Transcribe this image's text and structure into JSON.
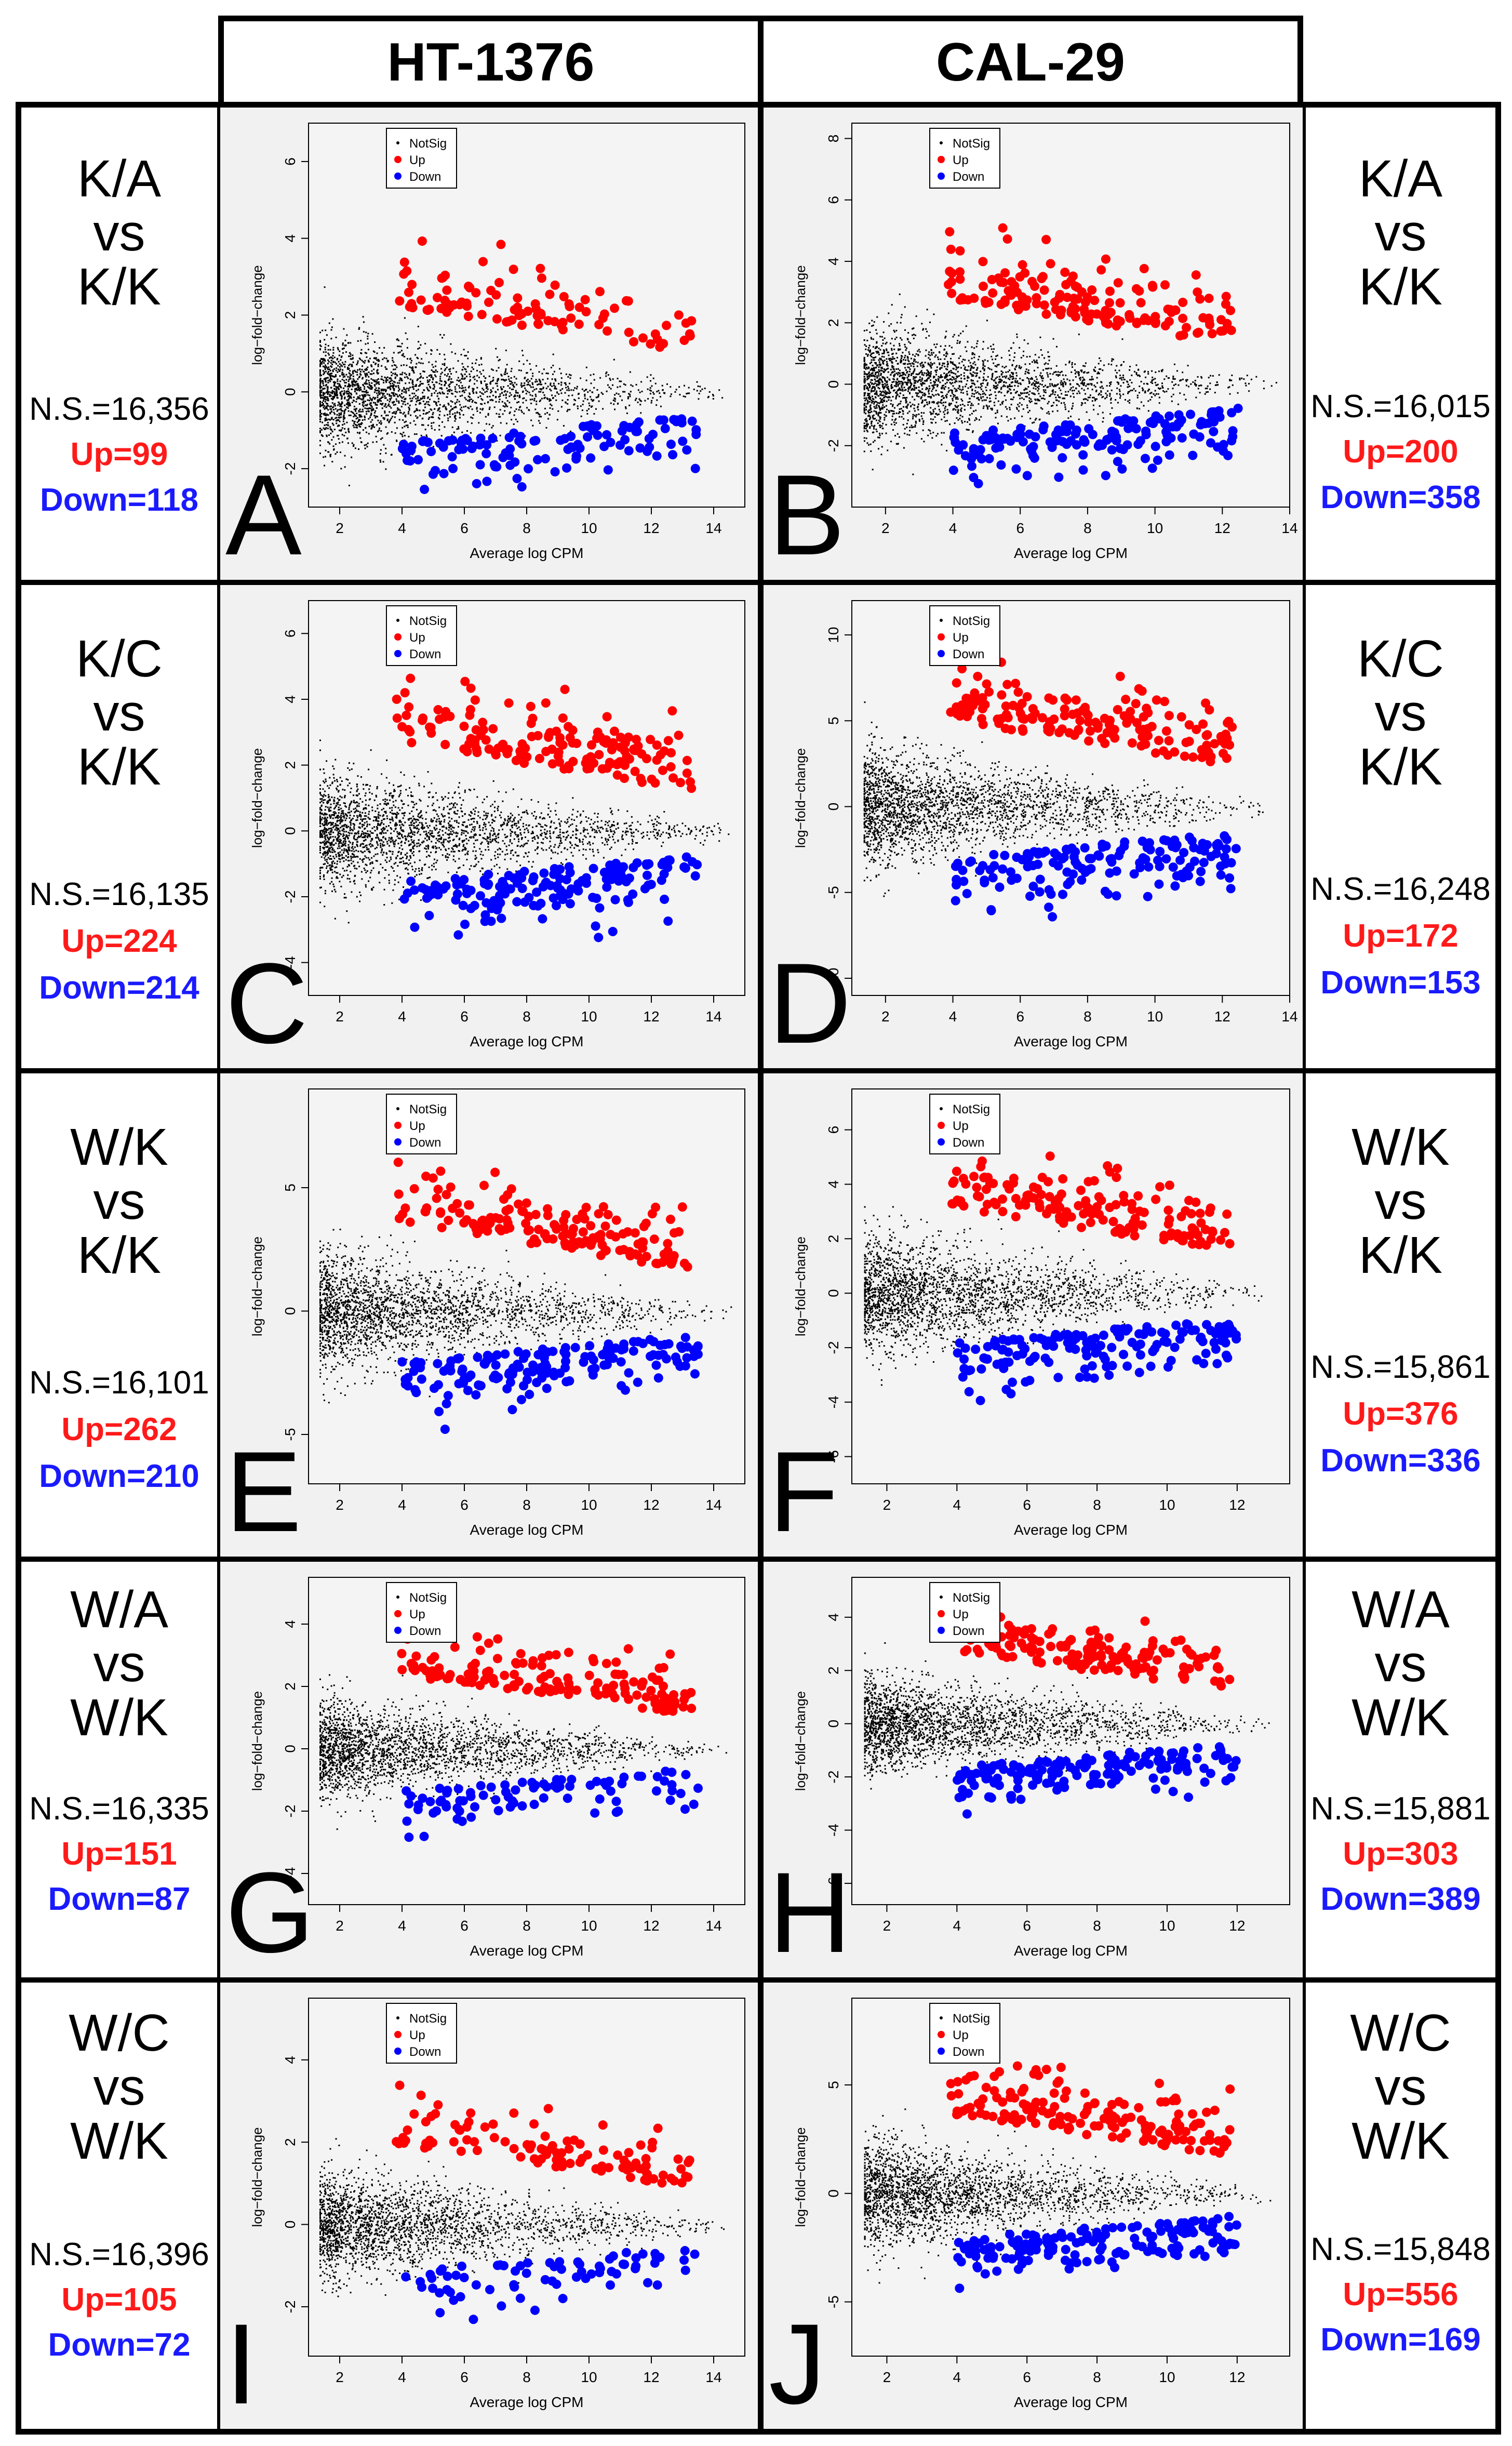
{
  "headers": {
    "left": "HT-1376",
    "right": "CAL-29"
  },
  "axis_labels": {
    "x": "Average log CPM",
    "y": "log−fold−change"
  },
  "legend": {
    "notsig": "NotSig",
    "up": "Up",
    "down": "Down"
  },
  "colors": {
    "notsig": "#000000",
    "up": "#ff0000",
    "down": "#0000ff",
    "up_text": "#ff1a1a",
    "down_text": "#1a1aff"
  },
  "rows": [
    {
      "comparison": [
        "K/A",
        "vs",
        "K/K"
      ],
      "left": {
        "ns": "N.S.=16,356",
        "up": "Up=99",
        "down": "Down=118"
      },
      "right": {
        "ns": "N.S.=16,015",
        "up": "Up=200",
        "down": "Down=358"
      }
    },
    {
      "comparison": [
        "K/C",
        "vs",
        "K/K"
      ],
      "left": {
        "ns": "N.S.=16,135",
        "up": "Up=224",
        "down": "Down=214"
      },
      "right": {
        "ns": "N.S.=16,248",
        "up": "Up=172",
        "down": "Down=153"
      }
    },
    {
      "comparison": [
        "W/K",
        "vs",
        "K/K"
      ],
      "left": {
        "ns": "N.S.=16,101",
        "up": "Up=262",
        "down": "Down=210"
      },
      "right": {
        "ns": "N.S.=15,861",
        "up": "Up=376",
        "down": "Down=336"
      }
    },
    {
      "comparison": [
        "W/A",
        "vs",
        "W/K"
      ],
      "left": {
        "ns": "N.S.=16,335",
        "up": "Up=151",
        "down": "Down=87"
      },
      "right": {
        "ns": "N.S.=15,881",
        "up": "Up=303",
        "down": "Down=389"
      }
    },
    {
      "comparison": [
        "W/C",
        "vs",
        "W/K"
      ],
      "left": {
        "ns": "N.S.=16,396",
        "up": "Up=105",
        "down": "Down=72"
      },
      "right": {
        "ns": "N.S.=15,848",
        "up": "Up=556",
        "down": "Down=169"
      }
    }
  ],
  "chart_data": [
    {
      "panel": "A",
      "type": "scatter",
      "cell_line": "HT-1376",
      "comparison": "K/A vs K/K",
      "xlabel": "Average log CPM",
      "ylabel": "log-fold-change",
      "xlim": [
        1,
        15
      ],
      "ylim": [
        -3,
        7
      ],
      "xticks": [
        2,
        4,
        6,
        8,
        10,
        12,
        14
      ],
      "yticks": [
        -2,
        0,
        2,
        4,
        6
      ],
      "legend": [
        "NotSig",
        "Up",
        "Down"
      ],
      "series": [
        {
          "name": "NotSig",
          "count": 16356
        },
        {
          "name": "Up",
          "count": 99
        },
        {
          "name": "Down",
          "count": 118
        }
      ]
    },
    {
      "panel": "B",
      "type": "scatter",
      "cell_line": "CAL-29",
      "comparison": "K/A vs K/K",
      "xlabel": "Average log CPM",
      "ylabel": "log-fold-change",
      "xlim": [
        1,
        14
      ],
      "ylim": [
        -4,
        8.5
      ],
      "xticks": [
        2,
        4,
        6,
        8,
        10,
        12,
        14
      ],
      "yticks": [
        -2,
        0,
        2,
        4,
        6,
        8
      ],
      "legend": [
        "NotSig",
        "Up",
        "Down"
      ],
      "series": [
        {
          "name": "NotSig",
          "count": 16015
        },
        {
          "name": "Up",
          "count": 200
        },
        {
          "name": "Down",
          "count": 358
        }
      ]
    },
    {
      "panel": "C",
      "type": "scatter",
      "cell_line": "HT-1376",
      "comparison": "K/C vs K/K",
      "xlabel": "Average log CPM",
      "ylabel": "log-fold-change",
      "xlim": [
        1,
        15
      ],
      "ylim": [
        -5,
        7
      ],
      "xticks": [
        2,
        4,
        6,
        8,
        10,
        12,
        14
      ],
      "yticks": [
        -4,
        -2,
        0,
        2,
        4,
        6
      ],
      "legend": [
        "NotSig",
        "Up",
        "Down"
      ],
      "series": [
        {
          "name": "NotSig",
          "count": 16135
        },
        {
          "name": "Up",
          "count": 224
        },
        {
          "name": "Down",
          "count": 214
        }
      ]
    },
    {
      "panel": "D",
      "type": "scatter",
      "cell_line": "CAL-29",
      "comparison": "K/C vs K/K",
      "xlabel": "Average log CPM",
      "ylabel": "log-fold-change",
      "xlim": [
        1,
        14
      ],
      "ylim": [
        -11,
        12
      ],
      "xticks": [
        2,
        4,
        6,
        8,
        10,
        12,
        14
      ],
      "yticks": [
        -10,
        -5,
        0,
        5,
        10
      ],
      "legend": [
        "NotSig",
        "Up",
        "Down"
      ],
      "series": [
        {
          "name": "NotSig",
          "count": 16248
        },
        {
          "name": "Up",
          "count": 172
        },
        {
          "name": "Down",
          "count": 153
        }
      ]
    },
    {
      "panel": "E",
      "type": "scatter",
      "cell_line": "HT-1376",
      "comparison": "W/K vs K/K",
      "xlabel": "Average log CPM",
      "ylabel": "log-fold-change",
      "xlim": [
        1,
        15
      ],
      "ylim": [
        -7,
        9
      ],
      "xticks": [
        2,
        4,
        6,
        8,
        10,
        12,
        14
      ],
      "yticks": [
        -5,
        0,
        5
      ],
      "legend": [
        "NotSig",
        "Up",
        "Down"
      ],
      "series": [
        {
          "name": "NotSig",
          "count": 16101
        },
        {
          "name": "Up",
          "count": 262
        },
        {
          "name": "Down",
          "count": 210
        }
      ]
    },
    {
      "panel": "F",
      "type": "scatter",
      "cell_line": "CAL-29",
      "comparison": "W/K vs K/K",
      "xlabel": "Average log CPM",
      "ylabel": "log-fold-change",
      "xlim": [
        1,
        13.5
      ],
      "ylim": [
        -7,
        7.5
      ],
      "xticks": [
        2,
        4,
        6,
        8,
        10,
        12
      ],
      "yticks": [
        -6,
        -4,
        -2,
        0,
        2,
        4,
        6
      ],
      "legend": [
        "NotSig",
        "Up",
        "Down"
      ],
      "series": [
        {
          "name": "NotSig",
          "count": 15861
        },
        {
          "name": "Up",
          "count": 376
        },
        {
          "name": "Down",
          "count": 336
        }
      ]
    },
    {
      "panel": "G",
      "type": "scatter",
      "cell_line": "HT-1376",
      "comparison": "W/A vs W/K",
      "xlabel": "Average log CPM",
      "ylabel": "log-fold-change",
      "xlim": [
        1,
        15
      ],
      "ylim": [
        -5,
        5.5
      ],
      "xticks": [
        2,
        4,
        6,
        8,
        10,
        12,
        14
      ],
      "yticks": [
        -4,
        -2,
        0,
        2,
        4
      ],
      "legend": [
        "NotSig",
        "Up",
        "Down"
      ],
      "series": [
        {
          "name": "NotSig",
          "count": 16335
        },
        {
          "name": "Up",
          "count": 151
        },
        {
          "name": "Down",
          "count": 87
        }
      ]
    },
    {
      "panel": "H",
      "type": "scatter",
      "cell_line": "CAL-29",
      "comparison": "W/A vs W/K",
      "xlabel": "Average log CPM",
      "ylabel": "log-fold-change",
      "xlim": [
        1,
        13.5
      ],
      "ylim": [
        -6.8,
        5.5
      ],
      "xticks": [
        2,
        4,
        6,
        8,
        10,
        12
      ],
      "yticks": [
        -6,
        -4,
        -2,
        0,
        2,
        4
      ],
      "legend": [
        "NotSig",
        "Up",
        "Down"
      ],
      "series": [
        {
          "name": "NotSig",
          "count": 15881
        },
        {
          "name": "Up",
          "count": 303
        },
        {
          "name": "Down",
          "count": 389
        }
      ]
    },
    {
      "panel": "I",
      "type": "scatter",
      "cell_line": "HT-1376",
      "comparison": "W/C vs W/K",
      "xlabel": "Average log CPM",
      "ylabel": "log-fold-change",
      "xlim": [
        1,
        15
      ],
      "ylim": [
        -3.2,
        5.5
      ],
      "xticks": [
        2,
        4,
        6,
        8,
        10,
        12,
        14
      ],
      "yticks": [
        -2,
        0,
        2,
        4
      ],
      "legend": [
        "NotSig",
        "Up",
        "Down"
      ],
      "series": [
        {
          "name": "NotSig",
          "count": 16396
        },
        {
          "name": "Up",
          "count": 105
        },
        {
          "name": "Down",
          "count": 72
        }
      ]
    },
    {
      "panel": "J",
      "type": "scatter",
      "cell_line": "CAL-29",
      "comparison": "W/C vs W/K",
      "xlabel": "Average log CPM",
      "ylabel": "log-fold-change",
      "xlim": [
        1,
        13.5
      ],
      "ylim": [
        -7.5,
        9
      ],
      "xticks": [
        2,
        4,
        6,
        8,
        10,
        12
      ],
      "yticks": [
        -5,
        0,
        5
      ],
      "legend": [
        "NotSig",
        "Up",
        "Down"
      ],
      "series": [
        {
          "name": "NotSig",
          "count": 15848
        },
        {
          "name": "Up",
          "count": 556
        },
        {
          "name": "Down",
          "count": 169
        }
      ]
    }
  ]
}
